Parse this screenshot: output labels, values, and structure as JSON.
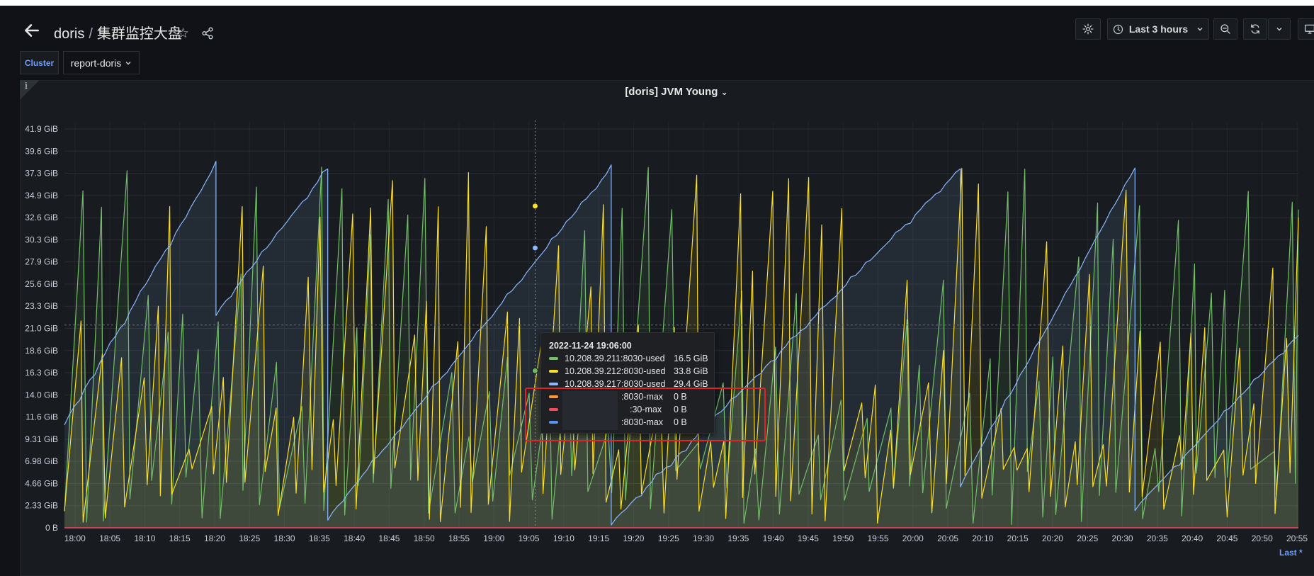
{
  "header": {
    "breadcrumb_parent": "doris",
    "breadcrumb_separator": "/",
    "dashboard_title": "集群监控大盘",
    "time_range_label": "Last 3 hours"
  },
  "variables": {
    "cluster_label": "Cluster",
    "cluster_value": "report-doris",
    "chevron": "⌄"
  },
  "panel": {
    "info_mark": "i",
    "title": "[doris] JVM Young",
    "title_chevron": "⌄"
  },
  "legend_footer": {
    "last_label": "Last *"
  },
  "colors": {
    "green": "#73bf69",
    "yellow": "#fade2a",
    "blue": "#8ab8ff",
    "orange": "#ff9830",
    "red": "#f2495c",
    "blue_dark": "#5794f2",
    "accent": "#6e9fff"
  },
  "chart_data": {
    "type": "line",
    "title": "[doris] JVM Young",
    "y_unit": "GiB",
    "ylim": [
      0,
      41.9
    ],
    "y_ticks": [
      "0 B",
      "2.33 GiB",
      "4.66 GiB",
      "6.98 GiB",
      "9.31 GiB",
      "11.6 GiB",
      "14.0 GiB",
      "16.3 GiB",
      "18.6 GiB",
      "21.0 GiB",
      "23.3 GiB",
      "25.6 GiB",
      "27.9 GiB",
      "30.3 GiB",
      "32.6 GiB",
      "34.9 GiB",
      "37.3 GiB",
      "39.6 GiB",
      "41.9 GiB"
    ],
    "x_ticks": [
      "18:00",
      "18:05",
      "18:10",
      "18:15",
      "18:20",
      "18:25",
      "18:30",
      "18:35",
      "18:40",
      "18:45",
      "18:50",
      "18:55",
      "19:00",
      "19:05",
      "19:10",
      "19:15",
      "19:20",
      "19:25",
      "19:30",
      "19:35",
      "19:40",
      "19:45",
      "19:50",
      "19:55",
      "20:00",
      "20:05",
      "20:10",
      "20:15",
      "20:20",
      "20:25",
      "20:30",
      "20:35",
      "20:40",
      "20:45",
      "20:50",
      "20:55"
    ],
    "x_range_minutes": [
      -1.5,
      175.2
    ],
    "hover_minute": 65.9,
    "series": [
      {
        "name": "10.208.39.211:8030-used",
        "color": "#73bf69",
        "kind": "sawtooth_gc",
        "seed": 7,
        "period_min": 2.3,
        "max_gib": 38.0
      },
      {
        "name": "10.208.39.212:8030-used",
        "color": "#fade2a",
        "kind": "sawtooth_gc",
        "seed": 13,
        "period_min": 1.9,
        "max_gib": 38.0
      },
      {
        "name": "10.208.39.217:8030-used",
        "color": "#8ab8ff",
        "kind": "ramp",
        "resets": [
          {
            "start": -1.5,
            "end": 20.2,
            "from": 11.0,
            "to": 38.2
          },
          {
            "start": 20.2,
            "end": 36.2,
            "from": 22.5,
            "to": 37.7
          },
          {
            "start": 36.2,
            "end": 76.8,
            "from": 1.0,
            "to": 37.8
          },
          {
            "start": 76.8,
            "end": 126.8,
            "from": 0.5,
            "to": 37.7
          },
          {
            "start": 126.8,
            "end": 151.8,
            "from": 4.5,
            "to": 37.8
          },
          {
            "start": 151.8,
            "end": 175.2,
            "from": 2.0,
            "to": 20.3
          }
        ]
      }
    ],
    "tooltip": {
      "time": "2022-11-24 19:06:00",
      "rows": [
        {
          "name": "10.208.39.211:8030-used",
          "value": "16.5 GiB",
          "color": "#73bf69"
        },
        {
          "name": "10.208.39.212:8030-used",
          "value": "33.8 GiB",
          "color": "#fade2a"
        },
        {
          "name": "10.208.39.217:8030-used",
          "value": "29.4 GiB",
          "color": "#8ab8ff"
        },
        {
          "name": ":8030-max",
          "value": "0 B",
          "color": "#ff9830"
        },
        {
          "name": ":30-max",
          "value": "0 B",
          "color": "#f2495c"
        },
        {
          "name": ":8030-max",
          "value": "0 B",
          "color": "#5794f2"
        }
      ]
    }
  }
}
